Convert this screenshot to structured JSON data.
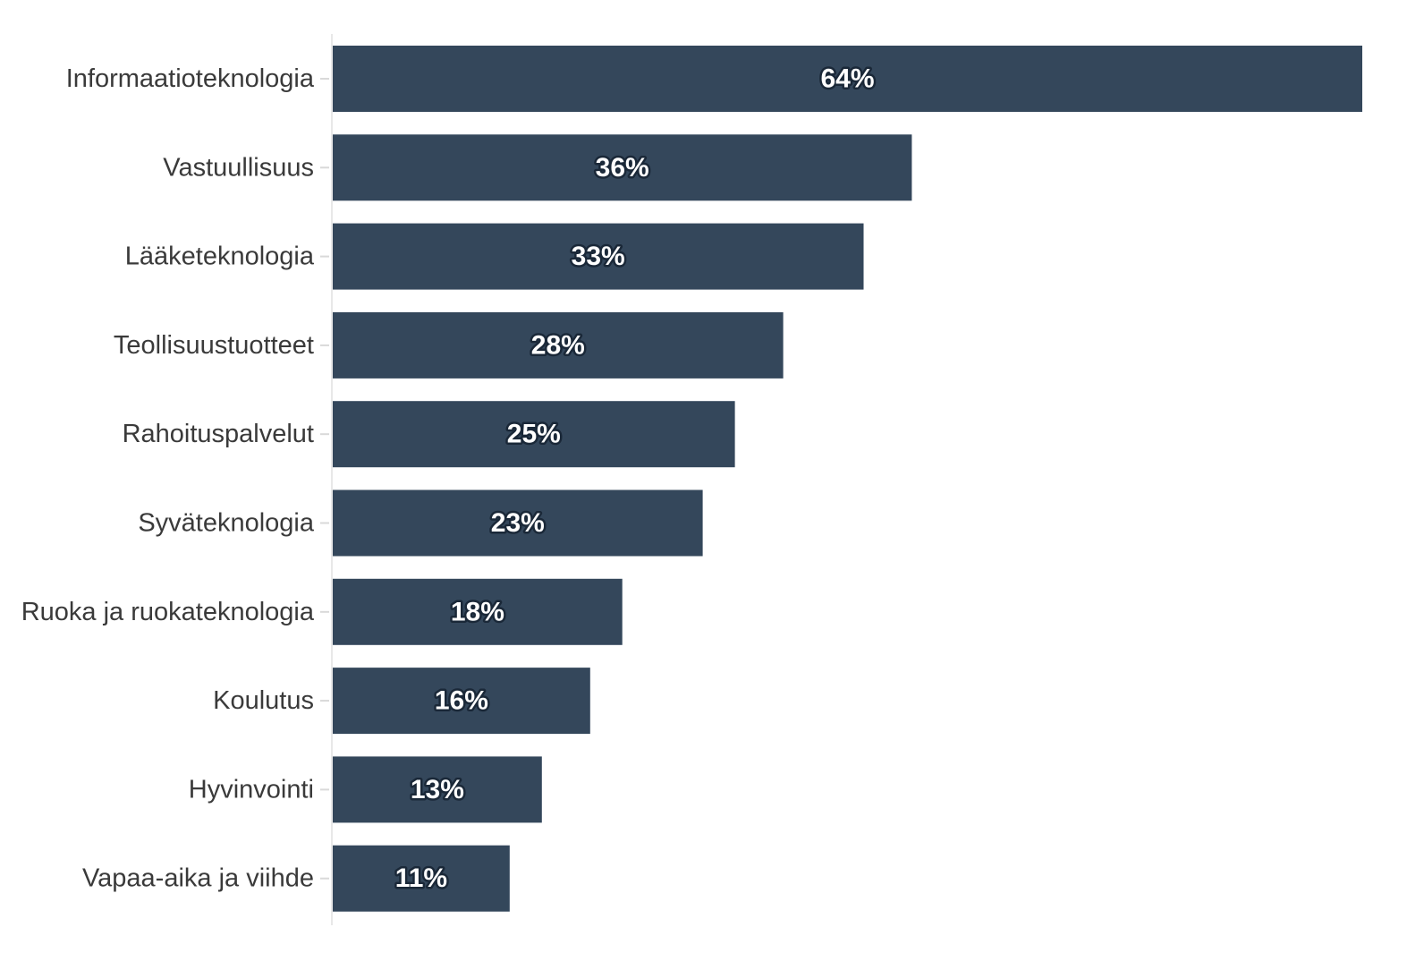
{
  "colors": {
    "bar": "#34475b",
    "axis": "#e8e8e8",
    "tick": "#d9d9d9",
    "category_text": "#3a3a3a",
    "value_text": "#ffffff",
    "value_outline": "#1a2838"
  },
  "chart_data": {
    "type": "bar",
    "orientation": "horizontal",
    "title": "",
    "xlabel": "",
    "ylabel": "",
    "xlim": [
      0,
      64
    ],
    "grid": false,
    "legend": "none",
    "categories": [
      "Informaatioteknologia",
      "Vastuullisuus",
      "Lääketeknologia",
      "Teollisuustuotteet",
      "Rahoituspalvelut",
      "Syväteknologia",
      "Ruoka ja ruokateknologia",
      "Koulutus",
      "Hyvinvointi",
      "Vapaa-aika ja viihde"
    ],
    "values": [
      64,
      36,
      33,
      28,
      25,
      23,
      18,
      16,
      13,
      11
    ],
    "value_labels": [
      "64%",
      "36%",
      "33%",
      "28%",
      "25%",
      "23%",
      "18%",
      "16%",
      "13%",
      "11%"
    ]
  }
}
